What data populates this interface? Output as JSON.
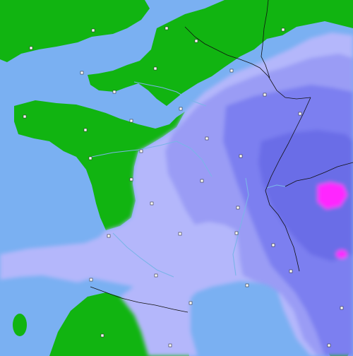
{
  "map": {
    "title": "",
    "colors": {
      "sea": "#7ab0f2",
      "land_clear": "#11b411",
      "precip_light": "#b4b7fb",
      "precip_mid": "#9a9cf5",
      "precip_heavy": "#7c7ff0",
      "precip_very_heavy": "#6a6de7",
      "precip_extreme": "#ff28ff",
      "border": "#111111",
      "river": "#7bb4e8",
      "city_marker": "#ffffff"
    },
    "icons": {
      "city": "white-square-marker"
    },
    "regions": [
      "great-britain-land",
      "northern-france-land",
      "brittany-land",
      "western-france-land",
      "massif-central-land",
      "spain-land",
      "corsica-land",
      "sardinia-land",
      "central-france-precipitation",
      "alps-precipitation",
      "pyrenees-precipitation",
      "western-alps-extreme-precipitation"
    ]
  }
}
